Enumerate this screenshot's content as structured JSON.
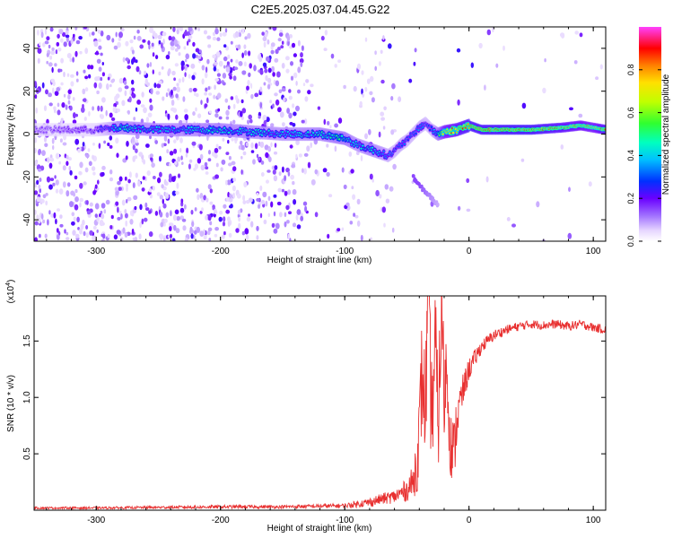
{
  "title": "C2E5.2025.037.04.45.G22",
  "chart_data": [
    {
      "type": "heatmap",
      "title": "C2E5.2025.037.04.45.G22",
      "xlabel": "Height of straight line (km)",
      "ylabel": "Frequency (Hz)",
      "xlim": [
        -350,
        110
      ],
      "ylim": [
        -50,
        50
      ],
      "xticks": [
        -300,
        -200,
        -100,
        0,
        100
      ],
      "yticks": [
        -40,
        -20,
        0,
        20,
        40
      ],
      "colorbar": {
        "label": "Normalized spectral amplitude",
        "range": [
          0,
          1
        ],
        "ticks": [
          "0.0",
          "0.2",
          "0.4",
          "0.6",
          "0.8"
        ],
        "tick_values": [
          0.0,
          0.2,
          0.4,
          0.6,
          0.8
        ]
      },
      "ridge": {
        "x": [
          -350,
          -300,
          -280,
          -250,
          -200,
          -150,
          -120,
          -100,
          -90,
          -80,
          -70,
          -65,
          -60,
          -55,
          -50,
          -45,
          -40,
          -35,
          -30,
          -25,
          -20,
          -10,
          0,
          10,
          30,
          50,
          75,
          90,
          100,
          110
        ],
        "y": [
          2,
          2,
          3,
          2,
          2,
          0,
          0,
          -2,
          -5,
          -7,
          -9,
          -10,
          -8,
          -5,
          -3,
          0,
          3,
          5,
          2,
          0,
          1,
          2,
          4,
          2,
          2,
          2,
          3,
          4,
          3,
          2
        ],
        "amplitude": [
          0.15,
          0.2,
          0.45,
          0.4,
          0.45,
          0.4,
          0.45,
          0.5,
          0.4,
          0.45,
          0.4,
          0.35,
          0.3,
          0.35,
          0.3,
          0.3,
          0.35,
          0.3,
          0.3,
          0.5,
          0.75,
          0.85,
          0.9,
          0.9,
          0.92,
          0.92,
          0.85,
          0.8,
          0.75,
          0.9
        ]
      },
      "branch": {
        "x": [
          -45,
          -40,
          -35,
          -30,
          -25
        ],
        "y": [
          -20,
          -24,
          -27,
          -30,
          -33
        ],
        "amplitude": [
          0.15,
          0.15,
          0.12,
          0.1,
          0.08
        ]
      }
    },
    {
      "type": "line",
      "xlabel": "Height of straight line (km)",
      "ylabel": "SNR (10 * v/v)",
      "yscale_label": "(x10",
      "yscale_exp": "4",
      "y_multiplier": 10000,
      "xlim": [
        -350,
        110
      ],
      "ylim": [
        0,
        1.9
      ],
      "xticks": [
        -300,
        -200,
        -100,
        0,
        100
      ],
      "yticks": [
        0.5,
        1.0,
        1.5
      ],
      "ytick_labels": [
        "0.5",
        "1.0",
        "1.5"
      ],
      "color": "#e83030",
      "series": [
        {
          "x": [
            -350,
            -300,
            -250,
            -200,
            -150,
            -100,
            -80,
            -70,
            -60,
            -55,
            -50,
            -45,
            -42,
            -40,
            -38,
            -35,
            -33,
            -30,
            -27,
            -25,
            -22,
            -20,
            -18,
            -15,
            -12,
            -10,
            -5,
            0,
            5,
            10,
            20,
            30,
            40,
            50,
            60,
            70,
            80,
            90,
            100,
            110
          ],
          "y": [
            0.02,
            0.02,
            0.025,
            0.03,
            0.03,
            0.04,
            0.07,
            0.1,
            0.12,
            0.15,
            0.18,
            0.25,
            0.45,
            0.65,
            1.2,
            0.9,
            1.85,
            0.8,
            1.5,
            0.7,
            1.85,
            1.0,
            1.3,
            0.6,
            0.5,
            0.8,
            1.05,
            1.25,
            1.35,
            1.45,
            1.55,
            1.6,
            1.63,
            1.65,
            1.64,
            1.65,
            1.63,
            1.65,
            1.62,
            1.6
          ],
          "noise": [
            0.01,
            0.01,
            0.012,
            0.015,
            0.015,
            0.02,
            0.04,
            0.05,
            0.06,
            0.08,
            0.1,
            0.15,
            0.3,
            0.4,
            0.5,
            0.5,
            0.6,
            0.55,
            0.55,
            0.5,
            0.5,
            0.45,
            0.4,
            0.3,
            0.3,
            0.25,
            0.15,
            0.1,
            0.08,
            0.06,
            0.05,
            0.04,
            0.04,
            0.04,
            0.04,
            0.04,
            0.04,
            0.04,
            0.04,
            0.04
          ]
        }
      ]
    }
  ]
}
